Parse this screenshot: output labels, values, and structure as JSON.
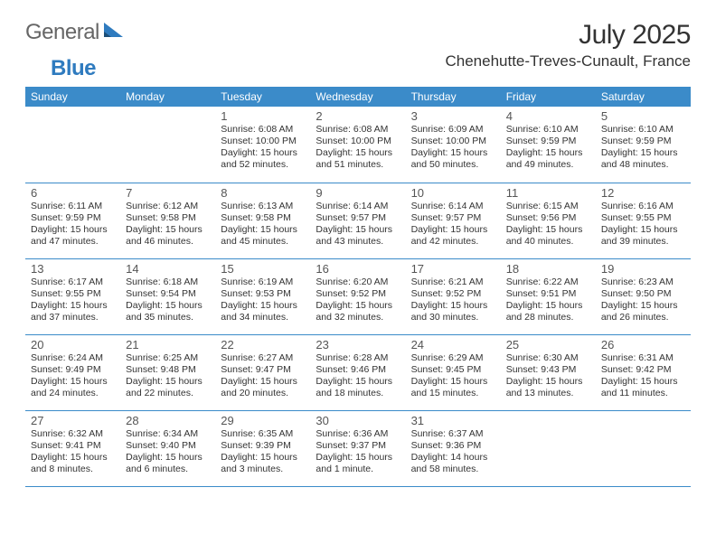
{
  "logo": {
    "general": "General",
    "blue": "Blue"
  },
  "title": "July 2025",
  "location": "Chenehutte-Treves-Cunault, France",
  "colors": {
    "header_bg": "#3B8BC9",
    "header_text": "#ffffff",
    "border": "#3B8BC9",
    "page_bg": "#ffffff",
    "text": "#333333",
    "logo_gray": "#666666",
    "logo_blue": "#2F7BBF"
  },
  "typography": {
    "title_fontsize": 30,
    "location_fontsize": 17,
    "dayheader_fontsize": 12,
    "daynum_fontsize": 13,
    "body_fontsize": 10.5
  },
  "day_headers": [
    "Sunday",
    "Monday",
    "Tuesday",
    "Wednesday",
    "Thursday",
    "Friday",
    "Saturday"
  ],
  "weeks": [
    [
      null,
      null,
      {
        "n": "1",
        "sunrise": "6:08 AM",
        "sunset": "10:00 PM",
        "dl_h": "15",
        "dl_m": "52"
      },
      {
        "n": "2",
        "sunrise": "6:08 AM",
        "sunset": "10:00 PM",
        "dl_h": "15",
        "dl_m": "51"
      },
      {
        "n": "3",
        "sunrise": "6:09 AM",
        "sunset": "10:00 PM",
        "dl_h": "15",
        "dl_m": "50"
      },
      {
        "n": "4",
        "sunrise": "6:10 AM",
        "sunset": "9:59 PM",
        "dl_h": "15",
        "dl_m": "49"
      },
      {
        "n": "5",
        "sunrise": "6:10 AM",
        "sunset": "9:59 PM",
        "dl_h": "15",
        "dl_m": "48"
      }
    ],
    [
      {
        "n": "6",
        "sunrise": "6:11 AM",
        "sunset": "9:59 PM",
        "dl_h": "15",
        "dl_m": "47"
      },
      {
        "n": "7",
        "sunrise": "6:12 AM",
        "sunset": "9:58 PM",
        "dl_h": "15",
        "dl_m": "46"
      },
      {
        "n": "8",
        "sunrise": "6:13 AM",
        "sunset": "9:58 PM",
        "dl_h": "15",
        "dl_m": "45"
      },
      {
        "n": "9",
        "sunrise": "6:14 AM",
        "sunset": "9:57 PM",
        "dl_h": "15",
        "dl_m": "43"
      },
      {
        "n": "10",
        "sunrise": "6:14 AM",
        "sunset": "9:57 PM",
        "dl_h": "15",
        "dl_m": "42"
      },
      {
        "n": "11",
        "sunrise": "6:15 AM",
        "sunset": "9:56 PM",
        "dl_h": "15",
        "dl_m": "40"
      },
      {
        "n": "12",
        "sunrise": "6:16 AM",
        "sunset": "9:55 PM",
        "dl_h": "15",
        "dl_m": "39"
      }
    ],
    [
      {
        "n": "13",
        "sunrise": "6:17 AM",
        "sunset": "9:55 PM",
        "dl_h": "15",
        "dl_m": "37"
      },
      {
        "n": "14",
        "sunrise": "6:18 AM",
        "sunset": "9:54 PM",
        "dl_h": "15",
        "dl_m": "35"
      },
      {
        "n": "15",
        "sunrise": "6:19 AM",
        "sunset": "9:53 PM",
        "dl_h": "15",
        "dl_m": "34"
      },
      {
        "n": "16",
        "sunrise": "6:20 AM",
        "sunset": "9:52 PM",
        "dl_h": "15",
        "dl_m": "32"
      },
      {
        "n": "17",
        "sunrise": "6:21 AM",
        "sunset": "9:52 PM",
        "dl_h": "15",
        "dl_m": "30"
      },
      {
        "n": "18",
        "sunrise": "6:22 AM",
        "sunset": "9:51 PM",
        "dl_h": "15",
        "dl_m": "28"
      },
      {
        "n": "19",
        "sunrise": "6:23 AM",
        "sunset": "9:50 PM",
        "dl_h": "15",
        "dl_m": "26"
      }
    ],
    [
      {
        "n": "20",
        "sunrise": "6:24 AM",
        "sunset": "9:49 PM",
        "dl_h": "15",
        "dl_m": "24"
      },
      {
        "n": "21",
        "sunrise": "6:25 AM",
        "sunset": "9:48 PM",
        "dl_h": "15",
        "dl_m": "22"
      },
      {
        "n": "22",
        "sunrise": "6:27 AM",
        "sunset": "9:47 PM",
        "dl_h": "15",
        "dl_m": "20"
      },
      {
        "n": "23",
        "sunrise": "6:28 AM",
        "sunset": "9:46 PM",
        "dl_h": "15",
        "dl_m": "18"
      },
      {
        "n": "24",
        "sunrise": "6:29 AM",
        "sunset": "9:45 PM",
        "dl_h": "15",
        "dl_m": "15"
      },
      {
        "n": "25",
        "sunrise": "6:30 AM",
        "sunset": "9:43 PM",
        "dl_h": "15",
        "dl_m": "13"
      },
      {
        "n": "26",
        "sunrise": "6:31 AM",
        "sunset": "9:42 PM",
        "dl_h": "15",
        "dl_m": "11"
      }
    ],
    [
      {
        "n": "27",
        "sunrise": "6:32 AM",
        "sunset": "9:41 PM",
        "dl_h": "15",
        "dl_m": "8"
      },
      {
        "n": "28",
        "sunrise": "6:34 AM",
        "sunset": "9:40 PM",
        "dl_h": "15",
        "dl_m": "6"
      },
      {
        "n": "29",
        "sunrise": "6:35 AM",
        "sunset": "9:39 PM",
        "dl_h": "15",
        "dl_m": "3"
      },
      {
        "n": "30",
        "sunrise": "6:36 AM",
        "sunset": "9:37 PM",
        "dl_h": "15",
        "dl_m": "1"
      },
      {
        "n": "31",
        "sunrise": "6:37 AM",
        "sunset": "9:36 PM",
        "dl_h": "14",
        "dl_m": "58"
      },
      null,
      null
    ]
  ],
  "labels": {
    "sunrise": "Sunrise:",
    "sunset": "Sunset:",
    "daylight": "Daylight:",
    "hours": "hours",
    "and": "and",
    "minute": "minute",
    "minutes": "minutes"
  }
}
